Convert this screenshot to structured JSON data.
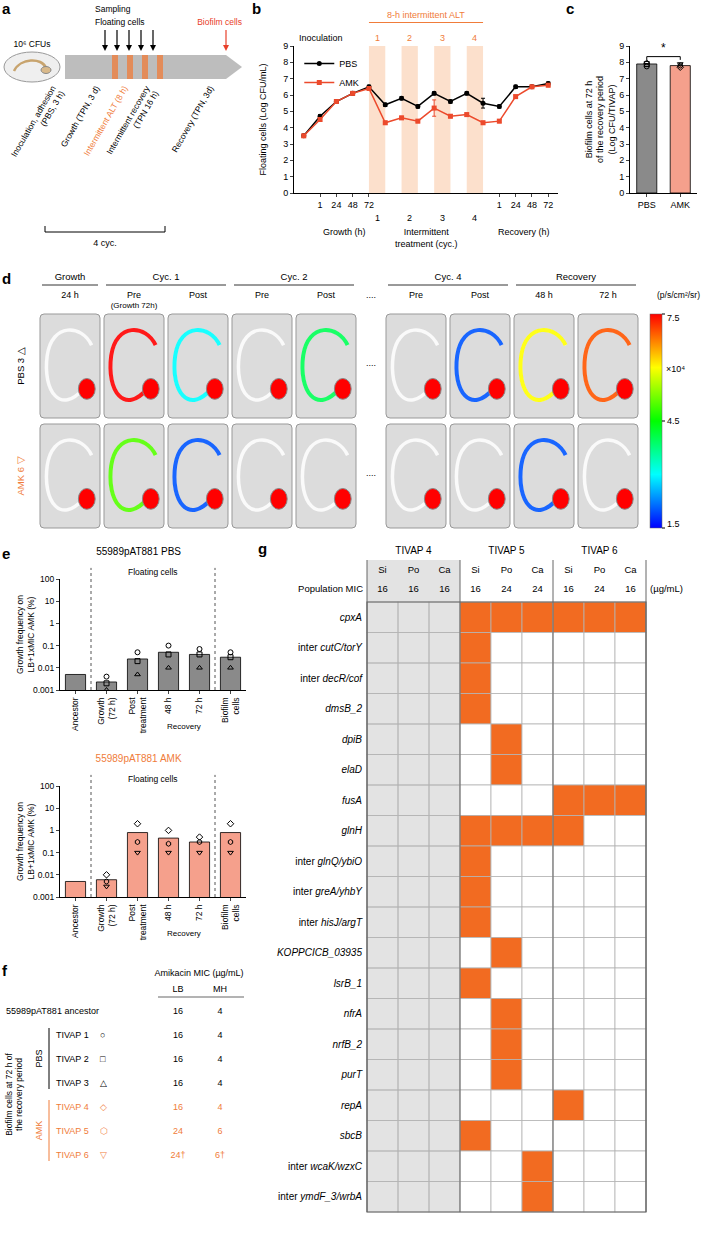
{
  "panel_letters": [
    "a",
    "b",
    "c",
    "d",
    "e",
    "f",
    "g"
  ],
  "diagram_a": {
    "sampling": "Sampling",
    "floating": "Floating cells",
    "biofilm": "Biofilm cells",
    "inoculum": "10⁶ CFUs",
    "steps": [
      {
        "text": "Inoculation, adhesion (PBS, 3 h)",
        "color": "#000000"
      },
      {
        "text": "Growth (TPN, 3 d)",
        "color": "#000000"
      },
      {
        "text": "Intermittent ALT (8 h)",
        "color": "#f07c3a"
      },
      {
        "text": "Intermittent recovery (TPN 16 h)",
        "color": "#000000"
      },
      {
        "text": "Recovery (TPN, 3d)",
        "color": "#000000"
      }
    ],
    "cycles": "4 cyc."
  },
  "chart_data": [
    {
      "type": "line",
      "y_title": "Floating cells (Log CFU/mL)",
      "categories": [
        null,
        "1",
        "24",
        "48",
        "72",
        null,
        null,
        null,
        null,
        null,
        null,
        null,
        "1",
        "24",
        "48",
        "72"
      ],
      "groups": [
        {
          "label": "Growth (h)",
          "from": 1,
          "to": 4
        },
        {
          "label": "Intermittent treatment (cyc.)",
          "from": 4,
          "to": 11
        },
        {
          "label": "Recovery (h)",
          "from": 12,
          "to": 15
        }
      ],
      "cycles": [
        {
          "label": "1",
          "from": 4,
          "to": 5
        },
        {
          "label": "2",
          "from": 6,
          "to": 7
        },
        {
          "label": "3",
          "from": 8,
          "to": 9
        },
        {
          "label": "4",
          "from": 10,
          "to": 11
        }
      ],
      "cycle_label": "8-h intermittent ALT",
      "start_label": "Inoculation",
      "series": [
        {
          "name": "PBS",
          "color": "#000000",
          "marker": "circle",
          "values": [
            3.5,
            4.7,
            5.6,
            6.1,
            6.5,
            5.4,
            5.8,
            5.3,
            6.1,
            5.6,
            6.1,
            5.5,
            5.3,
            6.5,
            6.5,
            6.7
          ],
          "errors": [
            0.1,
            0.1,
            0.1,
            0.1,
            0.1,
            0.1,
            0.1,
            0.1,
            0.1,
            0.1,
            0.1,
            0.3,
            0.1,
            0.1,
            0.1,
            0.1
          ]
        },
        {
          "name": "AMK",
          "color": "#ec4a2c",
          "marker": "square",
          "values": [
            3.5,
            4.5,
            5.6,
            6.1,
            6.4,
            4.3,
            4.6,
            4.4,
            5.2,
            4.7,
            4.8,
            4.3,
            4.4,
            5.9,
            6.5,
            6.6
          ],
          "errors": [
            0.1,
            0.1,
            0.1,
            0.1,
            0.1,
            0.1,
            0.1,
            0.1,
            0.5,
            0.1,
            0.1,
            0.1,
            0.1,
            0.1,
            0.1,
            0.1
          ]
        }
      ],
      "ylim": [
        0,
        9
      ],
      "yticks": [
        0,
        1,
        2,
        3,
        4,
        5,
        6,
        7,
        8,
        9
      ],
      "legend": "top-left"
    },
    {
      "type": "bar",
      "y_title": "Biofilm cells at 72 h of the recovery period (Log CFU/TIVAP)",
      "categories": [
        "PBS",
        "AMK"
      ],
      "values": [
        7.9,
        7.8
      ],
      "colors": [
        "#8a8a8a",
        "#f5a08c"
      ],
      "points": [
        [
          7.75,
          7.9,
          8.0
        ],
        [
          7.7,
          7.8,
          7.9
        ]
      ],
      "significance": "*",
      "ylim": [
        0,
        9
      ],
      "yticks": [
        0,
        1,
        2,
        3,
        4,
        5,
        6,
        7,
        8,
        9
      ]
    },
    {
      "type": "bar",
      "title": "55989pAT881 PBS",
      "y_title": "Growth frequency on LB+1xMIC AMK (%)",
      "categories": [
        "Ancestor",
        "Growth (72 h)",
        "Post treatment",
        "48 h",
        "72 h",
        "Biofilm cells"
      ],
      "values": [
        0.005,
        0.0023,
        0.025,
        0.05,
        0.04,
        0.03
      ],
      "points": [
        [],
        [
          0.004,
          0.002,
          0.001
        ],
        [
          0.05,
          0.02,
          0.005
        ],
        [
          0.1,
          0.04,
          0.01
        ],
        [
          0.07,
          0.04,
          0.01
        ],
        [
          0.05,
          0.03,
          0.01
        ]
      ],
      "color": "#8a8a8a",
      "floating_label": "Floating cells",
      "recovery_label": "Recovery",
      "log": "y",
      "ylim": [
        0.001,
        100
      ],
      "yticks": [
        0.001,
        0.01,
        0.1,
        1,
        10,
        100
      ]
    },
    {
      "type": "bar",
      "title": "55989pAT881 AMK",
      "y_title": "Growth frequency on LB+1xMIC AMK (%)",
      "categories": [
        "Ancestor",
        "Growth (72 h)",
        "Post treatment",
        "48 h",
        "72 h",
        "Biofilm cells"
      ],
      "values": [
        0.005,
        0.006,
        0.8,
        0.45,
        0.3,
        0.8
      ],
      "points": [
        [],
        [
          0.01,
          0.005,
          0.003
        ],
        [
          2,
          0.3,
          0.1
        ],
        [
          1,
          0.25,
          0.1
        ],
        [
          0.5,
          0.3,
          0.1
        ],
        [
          2,
          0.3,
          0.1
        ]
      ],
      "color": "#f5a08c",
      "floating_label": "Floating cells",
      "recovery_label": "Recovery",
      "log": "y",
      "ylim": [
        0.001,
        100
      ],
      "yticks": [
        0.001,
        0.01,
        0.1,
        1,
        10,
        100
      ]
    }
  ],
  "images_d": {
    "groups": [
      {
        "label": "Growth",
        "from": 0,
        "to": 0
      },
      {
        "label": "Cyc. 1",
        "from": 1,
        "to": 2
      },
      {
        "label": "Cyc. 2",
        "from": 3,
        "to": 4
      },
      {
        "label": "Cyc. 4",
        "from": 6,
        "to": 7
      },
      {
        "label": "Recovery",
        "from": 8,
        "to": 9
      }
    ],
    "columns": [
      {
        "label": "24 h"
      },
      {
        "label": "Pre",
        "sub": "(Growth 72h)"
      },
      {
        "label": "Post"
      },
      {
        "label": "Pre"
      },
      {
        "label": "Post"
      },
      {
        "label": "...."
      },
      {
        "label": "Pre"
      },
      {
        "label": "Post"
      },
      {
        "label": "48 h"
      },
      {
        "label": "72 h"
      }
    ],
    "rows": [
      {
        "label": "PBS 3",
        "symbol": "△",
        "color": "#000000",
        "port": [
          7.5,
          7.5,
          7.5,
          7.5,
          7.5,
          null,
          7.5,
          7.5,
          7.5,
          7.5
        ],
        "line": [
          null,
          7.5,
          3,
          null,
          4,
          null,
          null,
          2,
          6,
          7
        ]
      },
      {
        "label": "AMK 6",
        "symbol": "▽",
        "color": "#f07c3a",
        "port": [
          7.5,
          7.5,
          7.5,
          7.5,
          7.5,
          null,
          7.5,
          7.5,
          7.5,
          7.5
        ],
        "line": [
          null,
          5,
          2,
          null,
          null,
          null,
          null,
          null,
          2,
          null
        ]
      }
    ],
    "colorbar": {
      "range": [
        1.5,
        7.5
      ],
      "ticks": [
        1.5,
        4.5,
        7.5
      ],
      "unit": "(p/s/cm²/sr)",
      "scale": "×10⁴"
    }
  },
  "table_f": {
    "header": "Amikacin MIC (µg/mL)",
    "columns": [
      "LB",
      "MH"
    ],
    "side_label": "Biofilm cells at 72 h of the recovery period",
    "rows": [
      {
        "label": "55989pAT881 ancestor",
        "cells": [
          "16",
          "4"
        ],
        "color": "#000000"
      },
      {
        "group": "PBS",
        "label": "TIVAP 1",
        "symbol": "○",
        "cells": [
          "16",
          "4"
        ],
        "color": "#000000"
      },
      {
        "group": "PBS",
        "label": "TIVAP 2",
        "symbol": "□",
        "cells": [
          "16",
          "4"
        ],
        "color": "#000000"
      },
      {
        "group": "PBS",
        "label": "TIVAP 3",
        "symbol": "△",
        "cells": [
          "16",
          "4"
        ],
        "color": "#000000"
      },
      {
        "group": "AMK",
        "label": "TIVAP 4",
        "symbol": "◇",
        "cells": [
          "16",
          "4"
        ],
        "color": "#f07c3a"
      },
      {
        "group": "AMK",
        "label": "TIVAP 5",
        "symbol": "⬡",
        "cells": [
          "24",
          "6"
        ],
        "color": "#f07c3a"
      },
      {
        "group": "AMK",
        "label": "TIVAP 6",
        "symbol": "▽",
        "cells": [
          "24†",
          "6†"
        ],
        "color": "#f07c3a"
      }
    ]
  },
  "table_g": {
    "groups": [
      "TIVAP 4",
      "TIVAP 5",
      "TIVAP 6"
    ],
    "subcolumns": [
      "Si",
      "Po",
      "Ca"
    ],
    "mic_label": "Population MIC",
    "mic_unit": "(µg/mL)",
    "mic": [
      "16",
      "16",
      "16",
      "16",
      "24",
      "24",
      "16",
      "24",
      "16"
    ],
    "color": "#f26b21",
    "rows": [
      {
        "gene": "cpxA",
        "cells": [
          null,
          null,
          null,
          1,
          1,
          1,
          1,
          1,
          1
        ]
      },
      {
        "gene": "inter cutC/torY",
        "cells": [
          null,
          null,
          null,
          1,
          0,
          0,
          0,
          0,
          0
        ]
      },
      {
        "gene": "inter decR/cof",
        "cells": [
          null,
          null,
          null,
          1,
          0,
          0,
          0,
          0,
          0
        ]
      },
      {
        "gene": "dmsB_2",
        "cells": [
          null,
          null,
          null,
          1,
          0,
          0,
          0,
          0,
          0
        ]
      },
      {
        "gene": "dpiB",
        "cells": [
          null,
          null,
          null,
          0,
          1,
          0,
          0,
          0,
          0
        ]
      },
      {
        "gene": "elaD",
        "cells": [
          null,
          null,
          null,
          0,
          1,
          0,
          0,
          0,
          0
        ]
      },
      {
        "gene": "fusA",
        "cells": [
          null,
          null,
          null,
          0,
          0,
          0,
          1,
          1,
          1
        ]
      },
      {
        "gene": "glnH",
        "cells": [
          null,
          null,
          null,
          1,
          1,
          1,
          1,
          0,
          0
        ]
      },
      {
        "gene": "inter glnQ/ybiO",
        "cells": [
          null,
          null,
          null,
          1,
          0,
          0,
          0,
          0,
          0
        ]
      },
      {
        "gene": "inter greA/yhbY",
        "cells": [
          null,
          null,
          null,
          1,
          0,
          0,
          0,
          0,
          0
        ]
      },
      {
        "gene": "inter hisJ/argT",
        "cells": [
          null,
          null,
          null,
          1,
          0,
          0,
          0,
          0,
          0
        ]
      },
      {
        "gene": "KOPPCICB_03935",
        "cells": [
          null,
          null,
          null,
          0,
          1,
          0,
          0,
          0,
          0
        ]
      },
      {
        "gene": "lsrB_1",
        "cells": [
          null,
          null,
          null,
          1,
          0,
          0,
          0,
          0,
          0
        ]
      },
      {
        "gene": "nfrA",
        "cells": [
          null,
          null,
          null,
          0,
          1,
          0,
          0,
          0,
          0
        ]
      },
      {
        "gene": "nrfB_2",
        "cells": [
          null,
          null,
          null,
          0,
          1,
          0,
          0,
          0,
          0
        ]
      },
      {
        "gene": "purT",
        "cells": [
          null,
          null,
          null,
          0,
          1,
          0,
          0,
          0,
          0
        ]
      },
      {
        "gene": "repA",
        "cells": [
          null,
          null,
          null,
          0,
          0,
          0,
          1,
          0,
          0
        ]
      },
      {
        "gene": "sbcB",
        "cells": [
          null,
          null,
          null,
          1,
          0,
          0,
          0,
          0,
          0
        ]
      },
      {
        "gene": "inter wcaK/wzxC",
        "cells": [
          null,
          null,
          null,
          0,
          0,
          1,
          0,
          0,
          0
        ]
      },
      {
        "gene": "inter ymdF_3/wrbA",
        "cells": [
          null,
          null,
          null,
          0,
          0,
          1,
          0,
          0,
          0
        ]
      }
    ]
  }
}
